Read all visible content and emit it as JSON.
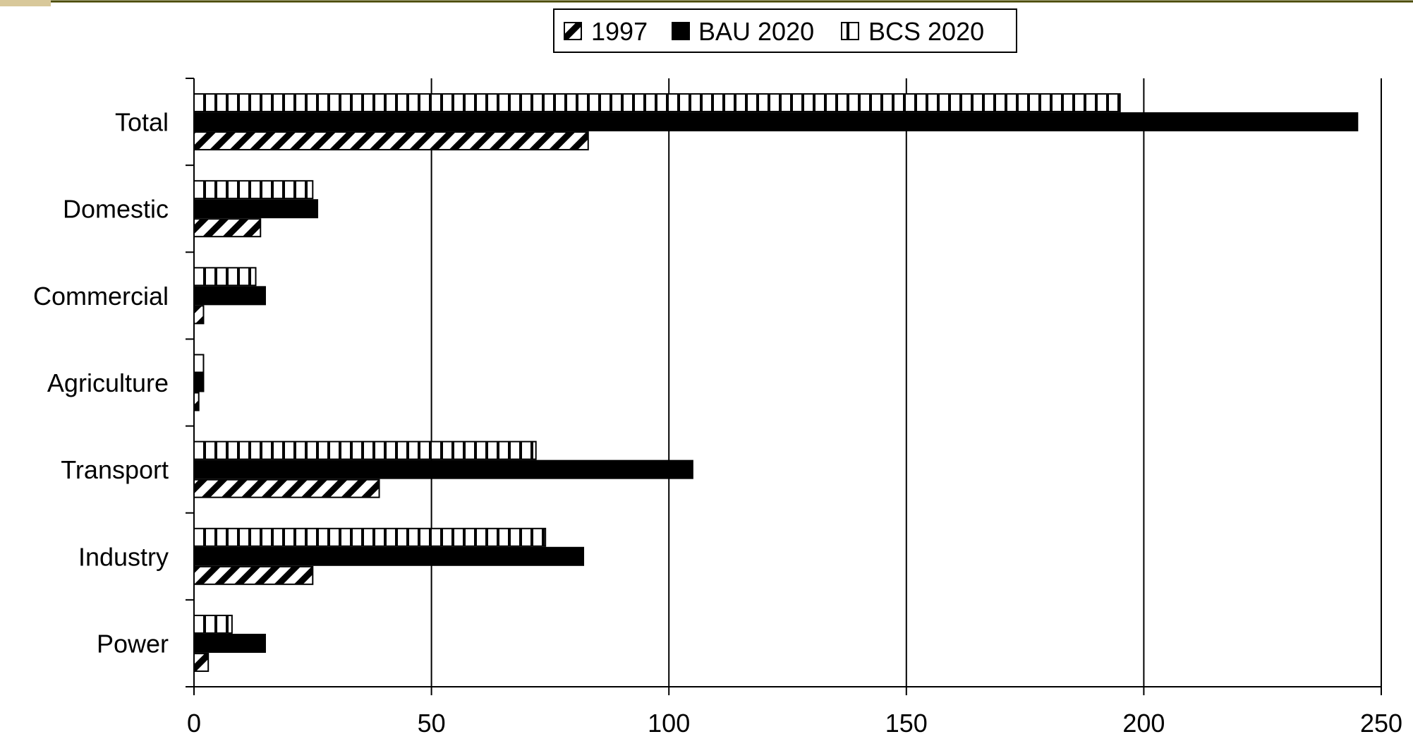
{
  "chart_data": {
    "type": "bar",
    "orientation": "horizontal",
    "categories": [
      "Total",
      "Domestic",
      "Commercial",
      "Agriculture",
      "Transport",
      "Industry",
      "Power"
    ],
    "series": [
      {
        "name": "1997",
        "values": [
          83,
          14,
          2,
          1,
          39,
          25,
          3
        ],
        "pattern": "diagonal"
      },
      {
        "name": "BAU 2020",
        "values": [
          245,
          26,
          15,
          2,
          105,
          82,
          15
        ],
        "pattern": "solid"
      },
      {
        "name": "BCS 2020",
        "values": [
          195,
          25,
          13,
          2,
          72,
          74,
          8
        ],
        "pattern": "vertical"
      }
    ],
    "xlim": [
      0,
      250
    ],
    "xticks": [
      "0",
      "50",
      "100",
      "150",
      "200",
      "250"
    ],
    "grid": true,
    "legend_position": "top-center",
    "colors": {
      "bar": "#000000",
      "fill": "#ffffff",
      "background": "#ffffff",
      "top_border": "#4a4a00"
    }
  }
}
